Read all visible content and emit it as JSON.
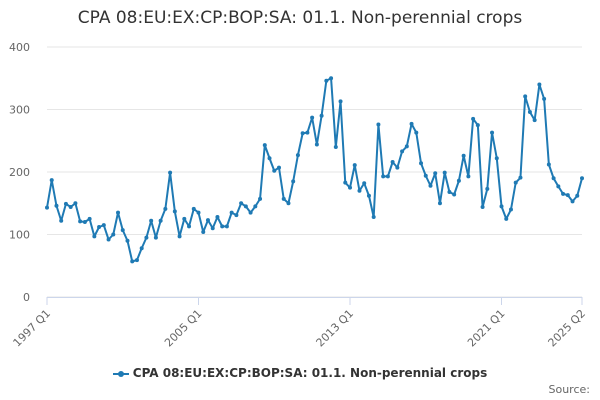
{
  "title": "CPA 08:EU:EX:CP:BOP:SA: 01.1. Non-perennial crops",
  "credits": "Source:",
  "colors": {
    "series": "#1f7ab4",
    "grid": "#e6e6e6",
    "axis": "#ccd6eb"
  },
  "chart_data": {
    "type": "line",
    "title": "CPA 08:EU:EX:CP:BOP:SA: 01.1. Non-perennial crops",
    "xlabel": "",
    "ylabel": "",
    "ylim": [
      0,
      400
    ],
    "yticks": [
      0,
      100,
      200,
      300,
      400
    ],
    "xticks": [
      "1997 Q1",
      "2005 Q1",
      "2013 Q1",
      "2021 Q1",
      "2025 Q2"
    ],
    "grid": true,
    "legend": "bottom",
    "x_start": "1997 Q1",
    "x_end": "2025 Q2",
    "series": [
      {
        "name": "CPA 08:EU:EX:CP:BOP:SA: 01.1. Non-perennial crops",
        "values": [
          143,
          187,
          146,
          122,
          149,
          144,
          150,
          121,
          120,
          125,
          97,
          112,
          115,
          92,
          100,
          135,
          107,
          90,
          57,
          59,
          78,
          95,
          122,
          95,
          122,
          141,
          199,
          137,
          97,
          125,
          113,
          141,
          135,
          104,
          123,
          110,
          128,
          113,
          113,
          135,
          131,
          150,
          145,
          135,
          145,
          157,
          243,
          222,
          202,
          207,
          157,
          150,
          185,
          227,
          262,
          263,
          287,
          244,
          290,
          346,
          350,
          240,
          313,
          183,
          175,
          211,
          170,
          182,
          162,
          128,
          276,
          193,
          193,
          216,
          207,
          233,
          241,
          277,
          263,
          214,
          194,
          178,
          198,
          150,
          199,
          168,
          164,
          186,
          226,
          193,
          285,
          275,
          144,
          173,
          263,
          222,
          145,
          125,
          140,
          183,
          191,
          321,
          296,
          283,
          340,
          317,
          212,
          190,
          177,
          165,
          163,
          153,
          162,
          190
        ]
      }
    ]
  }
}
